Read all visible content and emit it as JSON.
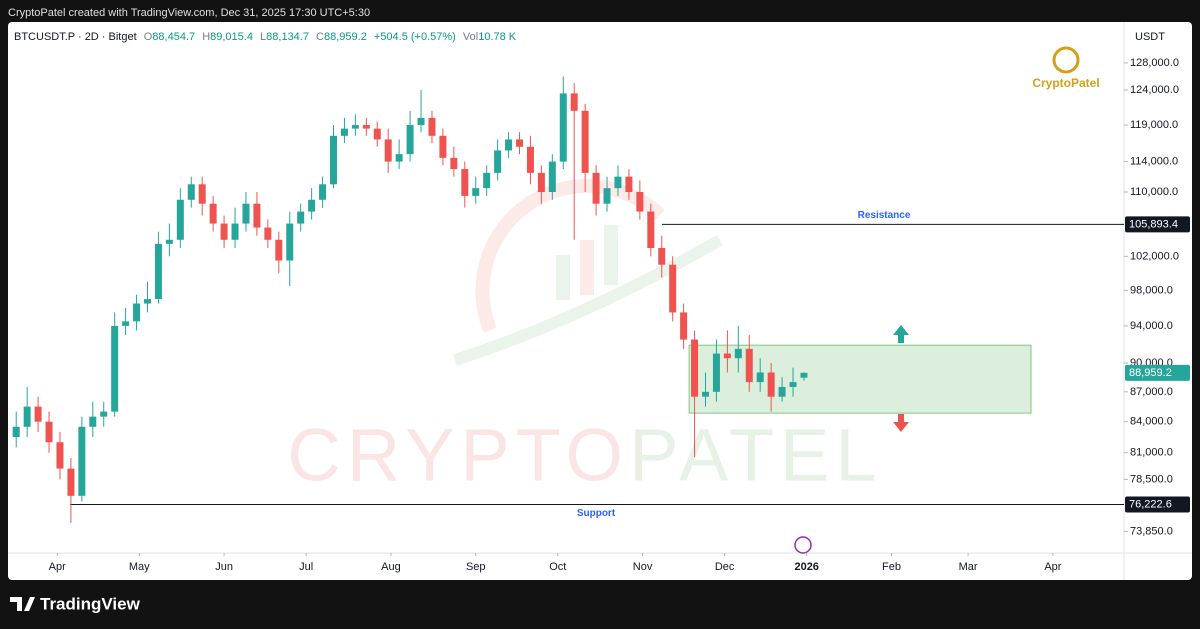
{
  "header": {
    "caption": "CryptoPatel created with TradingView.com, Dec 31, 2025 17:30 UTC+5:30"
  },
  "legend": {
    "items": [
      {
        "key": "O",
        "value": "88,454.7"
      },
      {
        "key": "H",
        "value": "89,015.4"
      },
      {
        "key": "L",
        "value": "88,134.7"
      },
      {
        "key": "C",
        "value": "88,959.2"
      }
    ],
    "change": "+504.5 (+0.57%)",
    "vol_key": "Vol",
    "vol": "10.78 K"
  },
  "logo": "CryptoPatel",
  "watermark": "CRYPTOPATEL",
  "footer": {
    "brand": "TradingView"
  },
  "chart_data": {
    "type": "candlestick",
    "title": "BTCUSDT.P · 2D · Bitget",
    "y_axis_label": "USDT",
    "up_color": "#26a69a",
    "down_color": "#ef5350",
    "log_scale": true,
    "grid": false,
    "x": [
      76,
      80,
      84,
      88,
      92,
      96,
      100,
      104,
      108,
      112,
      116,
      120,
      124,
      128,
      132,
      136,
      140,
      144,
      148,
      152,
      156,
      160,
      164,
      168,
      172,
      176,
      180,
      184,
      188,
      192,
      196,
      200,
      204,
      208,
      212,
      216,
      220,
      224,
      228,
      232,
      236,
      240,
      244,
      248,
      252,
      256,
      260,
      264,
      268,
      272,
      276,
      280,
      284,
      288,
      292,
      296,
      300,
      304,
      308,
      312,
      316,
      320,
      324,
      328,
      332,
      336,
      340,
      344,
      348,
      352,
      356,
      360,
      364
    ],
    "open": [
      82500,
      83500,
      85500,
      84000,
      82000,
      79500,
      77000,
      83500,
      84500,
      85000,
      94000,
      94500,
      96500,
      97000,
      103500,
      104000,
      109000,
      111000,
      108500,
      106000,
      104000,
      106000,
      108500,
      105500,
      104000,
      101500,
      106000,
      107500,
      109000,
      111000,
      117500,
      118500,
      119000,
      118500,
      117000,
      114000,
      115000,
      119000,
      120000,
      117500,
      114500,
      113000,
      109500,
      110500,
      112500,
      115500,
      117000,
      116000,
      112500,
      110000,
      114000,
      123500,
      121000,
      112500,
      108500,
      110500,
      112000,
      110000,
      107500,
      103000,
      101000,
      95500,
      92500,
      86500,
      87000,
      91000,
      90500,
      91500,
      88000,
      89000,
      86500,
      87500,
      88454.7
    ],
    "high": [
      85000,
      87500,
      86500,
      85000,
      83000,
      80500,
      84500,
      86000,
      86000,
      95500,
      96000,
      97500,
      99000,
      105000,
      106000,
      110500,
      112000,
      112000,
      109500,
      107000,
      108000,
      110000,
      110000,
      106500,
      105000,
      107500,
      108500,
      110500,
      112000,
      119000,
      120000,
      120500,
      120000,
      119500,
      118500,
      117000,
      121000,
      124000,
      121000,
      118500,
      116000,
      114000,
      112000,
      113500,
      117000,
      118000,
      118000,
      117500,
      113500,
      115000,
      126000,
      125000,
      122000,
      113500,
      112000,
      113500,
      113000,
      111500,
      108500,
      104500,
      102000,
      96500,
      93500,
      89000,
      92500,
      93500,
      94000,
      93000,
      90500,
      90000,
      88500,
      89500,
      89015.4
    ],
    "low": [
      81500,
      82500,
      83000,
      81000,
      78500,
      74600,
      76500,
      82500,
      83500,
      84500,
      93000,
      93500,
      95500,
      96500,
      102000,
      103000,
      108000,
      107000,
      105000,
      103000,
      103000,
      105000,
      104500,
      103000,
      100000,
      98500,
      105000,
      106500,
      108000,
      110500,
      116500,
      117500,
      117500,
      116000,
      112500,
      113000,
      114000,
      118000,
      116500,
      113500,
      112000,
      108000,
      108500,
      109500,
      111500,
      114500,
      115000,
      111000,
      108500,
      109000,
      113000,
      104000,
      110000,
      107000,
      107500,
      109500,
      109000,
      106500,
      102000,
      99500,
      94500,
      91500,
      80600,
      85500,
      86000,
      89000,
      89000,
      87000,
      87000,
      85000,
      86000,
      86500,
      88134.7
    ],
    "close": [
      83500,
      85500,
      84000,
      82000,
      79500,
      77000,
      83500,
      84500,
      85000,
      94000,
      94500,
      96500,
      97000,
      103500,
      104000,
      109000,
      111000,
      108500,
      106000,
      104000,
      106000,
      108500,
      105500,
      104000,
      101500,
      106000,
      107500,
      109000,
      111000,
      117500,
      118500,
      119000,
      118500,
      117000,
      114000,
      115000,
      119000,
      120000,
      117500,
      114500,
      113000,
      109500,
      110500,
      112500,
      115500,
      117000,
      116000,
      112500,
      110000,
      114000,
      123500,
      121000,
      112500,
      108500,
      110500,
      112000,
      110000,
      107500,
      103000,
      101000,
      95500,
      92500,
      86500,
      87000,
      91000,
      90500,
      91500,
      88000,
      89000,
      86500,
      87500,
      88000,
      88959.2
    ],
    "ylim": [
      72000,
      134300
    ],
    "yticks": [
      {
        "value": 128000,
        "label": "128,000.0"
      },
      {
        "value": 124000,
        "label": "124,000.0"
      },
      {
        "value": 119000,
        "label": "119,000.0"
      },
      {
        "value": 114000,
        "label": "114,000.0"
      },
      {
        "value": 110000,
        "label": "110,000.0"
      },
      {
        "value": 102000,
        "label": "102,000.0"
      },
      {
        "value": 98000,
        "label": "98,000.0"
      },
      {
        "value": 94000,
        "label": "94,000.0"
      },
      {
        "value": 90000,
        "label": "90,000.0"
      },
      {
        "value": 87000,
        "label": "87,000.0"
      },
      {
        "value": 84000,
        "label": "84,000.0"
      },
      {
        "value": 81000,
        "label": "81,000.0"
      },
      {
        "value": 78500,
        "label": "78,500.0"
      },
      {
        "value": 73850,
        "label": "73,850.0"
      }
    ],
    "xlim": [
      73,
      481
    ],
    "xticks": [
      {
        "value": 91,
        "label": "Apr"
      },
      {
        "value": 121,
        "label": "May"
      },
      {
        "value": 152,
        "label": "Jun"
      },
      {
        "value": 182,
        "label": "Jul"
      },
      {
        "value": 213,
        "label": "Aug"
      },
      {
        "value": 244,
        "label": "Sep"
      },
      {
        "value": 274,
        "label": "Oct"
      },
      {
        "value": 305,
        "label": "Nov"
      },
      {
        "value": 335,
        "label": "Dec"
      },
      {
        "value": 365,
        "label": "2026"
      },
      {
        "value": 396,
        "label": "Feb"
      },
      {
        "value": 424,
        "label": "Mar"
      },
      {
        "value": 455,
        "label": "Apr"
      }
    ],
    "levels": [
      {
        "label": "Resistance",
        "value": 105893.4,
        "value_label": "105,893.4"
      },
      {
        "label": "Support",
        "value": 76222.6,
        "value_label": "76,222.6"
      }
    ],
    "zone": {
      "low": 84850,
      "high": 91900,
      "start": 322,
      "end": 447
    },
    "last_price": {
      "value": 88959.2,
      "label": "88,959.2"
    }
  }
}
